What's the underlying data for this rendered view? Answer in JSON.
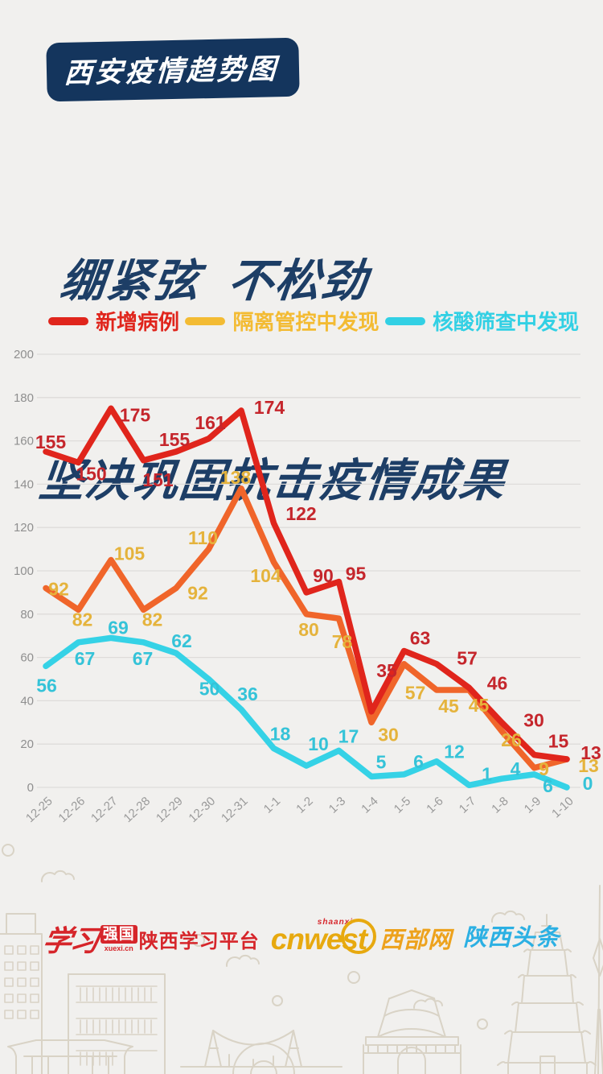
{
  "page": {
    "background": "#f1f0ee"
  },
  "badge": {
    "label": "西安疫情趋势图",
    "bg": "#14355d"
  },
  "heading": {
    "line1": "绷紧弦  不松劲",
    "line2": "坚决巩固抗击疫情成果",
    "color": "#1d3e66"
  },
  "legend": {
    "items": [
      {
        "label": "新增病例",
        "color": "#e0251c"
      },
      {
        "label": "隔离管控中发现",
        "color": "#f3bb33"
      },
      {
        "label": "核酸筛查中发现",
        "color": "#32d0e4"
      }
    ]
  },
  "chart_data": {
    "type": "line",
    "title": "西安疫情趋势图",
    "categories": [
      "12-25",
      "12-26",
      "12-27",
      "12-28",
      "12-29",
      "12-30",
      "12-31",
      "1-1",
      "1-2",
      "1-3",
      "1-4",
      "1-5",
      "1-6",
      "1-7",
      "1-8",
      "1-9",
      "1-10"
    ],
    "series": [
      {
        "name": "新增病例",
        "color": "#e0251c",
        "label_color": "#c5262c",
        "values": [
          155,
          150,
          175,
          151,
          155,
          161,
          174,
          122,
          90,
          95,
          35,
          63,
          57,
          46,
          30,
          15,
          13
        ]
      },
      {
        "name": "隔离管控中发现",
        "color": "#f0652a",
        "label_color": "#e5b33c",
        "values": [
          92,
          82,
          105,
          82,
          92,
          110,
          138,
          104,
          80,
          78,
          30,
          57,
          45,
          45,
          26,
          9,
          13
        ]
      },
      {
        "name": "核酸筛查中发现",
        "color": "#35d2e6",
        "label_color": "#35c3d8",
        "values": [
          56,
          67,
          69,
          67,
          62,
          50,
          36,
          18,
          10,
          17,
          5,
          6,
          12,
          1,
          4,
          6,
          0
        ]
      }
    ],
    "ylim": [
      0,
      200
    ],
    "ytick_step": 20,
    "grid": true,
    "legend_position": "top",
    "axis_color": "#8f8f8f",
    "grid_color": "#dedcda"
  },
  "footer": {
    "xuexi_script": "学习",
    "xuexi_box": "强国",
    "xuexi_url": "xuexi.cn",
    "xuexi_platform": "陕西学习平台",
    "cnwest_small": "shaanxi",
    "cnwest_text": "cnwest",
    "cnwest_site": "西部网",
    "toutiao": "陕西头条"
  }
}
